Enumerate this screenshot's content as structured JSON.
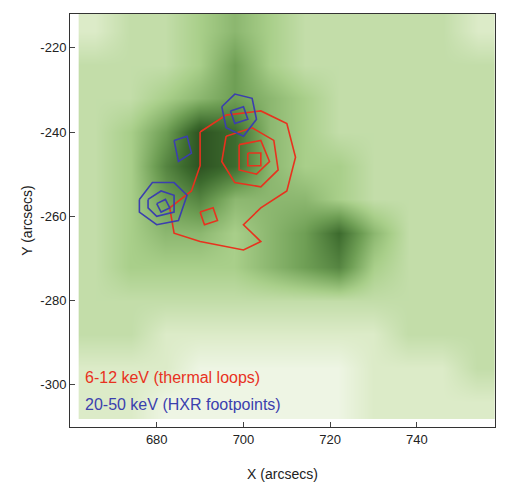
{
  "chart_data": {
    "type": "contour_overlay",
    "x_label": "X (arcsecs)",
    "y_label": "Y (arcsecs)",
    "xlim": [
      660,
      758
    ],
    "ylim": [
      -310,
      -212
    ],
    "xticks": [
      680,
      700,
      720,
      740
    ],
    "yticks": [
      -300,
      -280,
      -260,
      -240,
      -220
    ],
    "grid": false,
    "legend": "lower left",
    "image": {
      "x": [
        666,
        674,
        682,
        690,
        698,
        706,
        714,
        722,
        730,
        738,
        746,
        754
      ],
      "y": [
        -304,
        -296,
        -288,
        -280,
        -272,
        -264,
        -256,
        -248,
        -240,
        -232,
        -224,
        -216
      ],
      "zlim": [
        0,
        10
      ],
      "cells": [
        [
          2,
          2,
          1,
          1,
          1,
          1,
          1,
          1,
          2,
          2,
          2,
          2
        ],
        [
          2,
          2,
          2,
          1,
          1,
          1,
          1,
          1,
          2,
          2,
          2,
          3
        ],
        [
          3,
          3,
          2,
          2,
          2,
          2,
          2,
          2,
          2,
          3,
          3,
          3
        ],
        [
          3,
          3,
          3,
          3,
          3,
          3,
          3,
          3,
          3,
          3,
          3,
          3
        ],
        [
          3,
          4,
          4,
          4,
          4,
          5,
          6,
          7,
          4,
          3,
          3,
          3
        ],
        [
          3,
          4,
          5,
          5,
          4,
          5,
          6,
          8,
          5,
          3,
          3,
          3
        ],
        [
          3,
          4,
          6,
          7,
          5,
          5,
          5,
          4,
          3,
          3,
          3,
          3
        ],
        [
          3,
          4,
          7,
          9,
          8,
          5,
          4,
          4,
          3,
          3,
          3,
          3
        ],
        [
          3,
          4,
          6,
          9,
          8,
          5,
          4,
          3,
          3,
          3,
          3,
          3
        ],
        [
          3,
          3,
          4,
          5,
          6,
          5,
          4,
          3,
          3,
          3,
          3,
          3
        ],
        [
          3,
          3,
          3,
          4,
          6,
          4,
          3,
          3,
          3,
          3,
          3,
          3
        ],
        [
          2,
          3,
          3,
          4,
          5,
          4,
          3,
          3,
          3,
          3,
          3,
          2
        ]
      ]
    },
    "series": [
      {
        "name": "6-12 keV (thermal loops)",
        "color": "#e8321e",
        "x": [
          690,
          696,
          704,
          710,
          712,
          710,
          704,
          700,
          704,
          700,
          690,
          684,
          683,
          688,
          690,
          690,
          null,
          696,
          702,
          707,
          708,
          704,
          698,
          695,
          696,
          null,
          699,
          704,
          706,
          703,
          699,
          699,
          null,
          701,
          704,
          704,
          701,
          701,
          null,
          690,
          693,
          694,
          691,
          690
        ],
        "y": [
          -240,
          -236,
          -235,
          -238,
          -246,
          -254,
          -258,
          -262,
          -266,
          -268,
          -266,
          -264,
          -258,
          -254,
          -248,
          -240,
          null,
          -241,
          -239,
          -242,
          -249,
          -253,
          -252,
          -247,
          -241,
          null,
          -243,
          -242,
          -247,
          -250,
          -249,
          -243,
          null,
          -245,
          -245,
          -248,
          -248,
          -245,
          null,
          -259,
          -258,
          -261,
          -262,
          -259
        ]
      },
      {
        "name": "20-50 keV (HXR footpoints)",
        "color": "#3b3fae",
        "x": [
          676,
          679,
          684,
          687,
          685,
          680,
          676,
          676,
          null,
          678,
          681,
          684,
          684,
          680,
          678,
          678,
          null,
          680,
          682,
          683,
          681,
          680,
          null,
          695,
          698,
          702,
          703,
          700,
          696,
          695,
          null,
          697,
          700,
          701,
          698,
          697,
          null,
          684,
          687,
          688,
          685,
          684
        ],
        "y": [
          -256,
          -252,
          -252,
          -255,
          -261,
          -262,
          -259,
          -256,
          null,
          -256,
          -254,
          -255,
          -259,
          -260,
          -258,
          -256,
          null,
          -257,
          -256,
          -258,
          -259,
          -257,
          null,
          -234,
          -231,
          -232,
          -237,
          -241,
          -239,
          -234,
          null,
          -235,
          -234,
          -237,
          -238,
          -235,
          null,
          -242,
          -241,
          -245,
          -247,
          -242
        ]
      }
    ]
  }
}
